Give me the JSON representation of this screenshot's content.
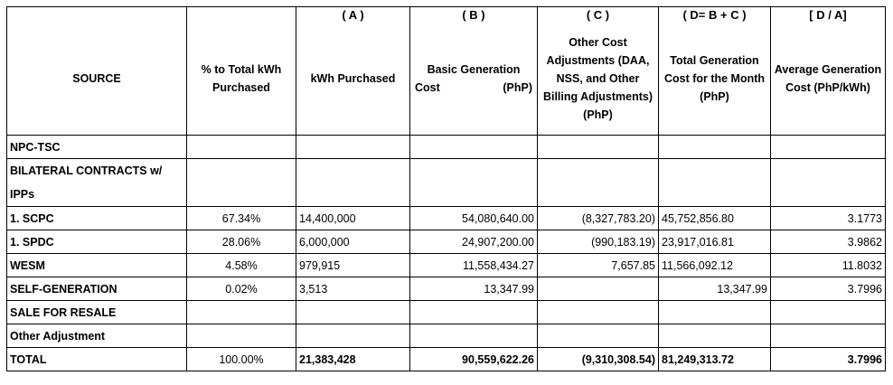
{
  "headers": {
    "source": "SOURCE",
    "pct": "% to Total kWh Purchased",
    "kwh_letter": "( A )",
    "kwh": "kWh Purchased",
    "bgc_letter": "( B )",
    "bgc_line1": "Basic Generation",
    "bgc_line2a": "Cost",
    "bgc_line2b": "(PhP)",
    "oca_letter": "( C )",
    "oca": "Other Cost Adjustments (DAA, NSS, and Other Billing Adjustments) (PhP)",
    "tgc_letter": "( D= B + C )",
    "tgc": "Total Generation Cost for the Month (PhP)",
    "agc_letter": "[ D / A]",
    "agc": "Average Generation Cost (PhP/kWh)"
  },
  "rows": {
    "npc": {
      "source": "NPC-TSC"
    },
    "bilateral": {
      "source": "BILATERAL CONTRACTS w/ IPPs"
    },
    "scpc": {
      "source": "1.   SCPC",
      "pct": "67.34%",
      "kwh": "14,400,000",
      "bgc": "54,080,640.00",
      "oca": "(8,327,783.20)",
      "tgc": "45,752,856.80",
      "agc": "3.1773"
    },
    "spdc": {
      "source": "1.   SPDC",
      "pct": "28.06%",
      "kwh": "6,000,000",
      "bgc": "24,907,200.00",
      "oca": "(990,183.19)",
      "tgc": "23,917,016.81",
      "agc": "3.9862"
    },
    "wesm": {
      "source": "WESM",
      "pct": "4.58%",
      "kwh": "979,915",
      "bgc": "11,558,434.27",
      "oca": "7,657.85",
      "tgc": "11,566,092.12",
      "agc": "11.8032"
    },
    "selfgen": {
      "source": "SELF-GENERATION",
      "pct": "0.02%",
      "kwh": "3,513",
      "bgc": "13,347.99",
      "oca": "",
      "tgc": "13,347.99",
      "agc": "3.7996"
    },
    "resale": {
      "source": "SALE FOR RESALE"
    },
    "other": {
      "source": "Other Adjustment"
    },
    "total": {
      "source": "TOTAL",
      "pct": "100.00%",
      "kwh": "21,383,428",
      "bgc": "90,559,622.26",
      "oca": "(9,310,308.54)",
      "tgc": "81,249,313.72",
      "agc": "3.7996"
    }
  }
}
